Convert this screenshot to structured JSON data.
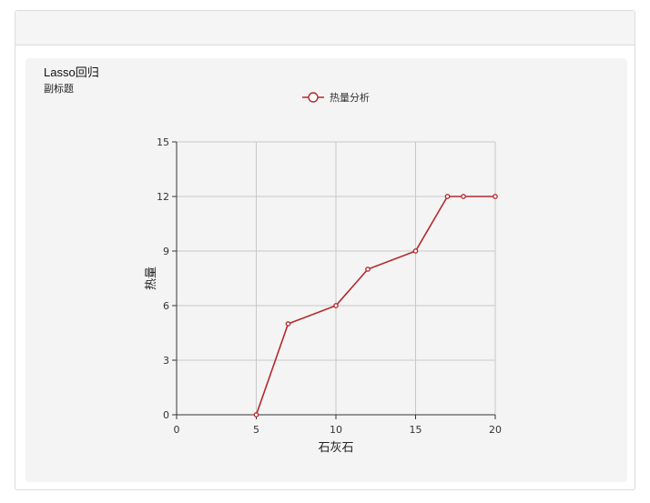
{
  "colors": {
    "series": "#b5282a",
    "grid": "#c8c8c8",
    "axis": "#333333",
    "card_bg": "#f4f4f4"
  },
  "chart_data": {
    "type": "line",
    "title": "Lasso回归",
    "subtitle": "副标题",
    "xlabel": "石灰石",
    "ylabel": "热量",
    "xlim": [
      0,
      20
    ],
    "ylim": [
      0,
      15
    ],
    "xticks": [
      0,
      5,
      10,
      15,
      20
    ],
    "yticks": [
      0,
      3,
      6,
      9,
      12,
      15
    ],
    "grid": true,
    "legend_position": "top-center",
    "series": [
      {
        "name": "热量分析",
        "marker": "hollow-circle",
        "x": [
          5,
          7,
          10,
          12,
          15,
          17,
          18,
          20
        ],
        "y": [
          0,
          5,
          6,
          8,
          9,
          12,
          12,
          12
        ]
      }
    ]
  }
}
